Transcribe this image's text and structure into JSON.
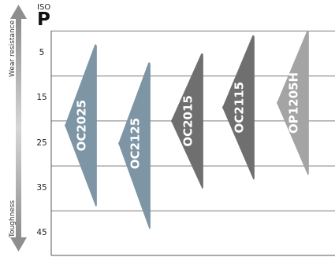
{
  "header": {
    "iso": "ISO",
    "class": "P"
  },
  "axis": {
    "wear_label": "Wear resistance",
    "tough_label": "Toughness",
    "ticks": [
      "5",
      "15",
      "25",
      "35",
      "45"
    ],
    "levels": [
      5,
      15,
      25,
      35,
      45
    ],
    "gridlines": [
      10,
      20,
      30,
      40
    ]
  },
  "grades": [
    {
      "name": "OC2025",
      "top": 3,
      "point": 21,
      "bottom": 39,
      "color": "#7d95a4"
    },
    {
      "name": "OC2125",
      "top": 7,
      "point": 25,
      "bottom": 44,
      "color": "#7d95a4"
    },
    {
      "name": "OC2015",
      "top": 5,
      "point": 20,
      "bottom": 35,
      "color": "#6f6f6f"
    },
    {
      "name": "OC2115",
      "top": 1,
      "point": 17,
      "bottom": 33,
      "color": "#6f6f6f"
    },
    {
      "name": "OP1205H",
      "top": 0,
      "point": 16,
      "bottom": 32,
      "color": "#a4a4a4"
    }
  ]
}
